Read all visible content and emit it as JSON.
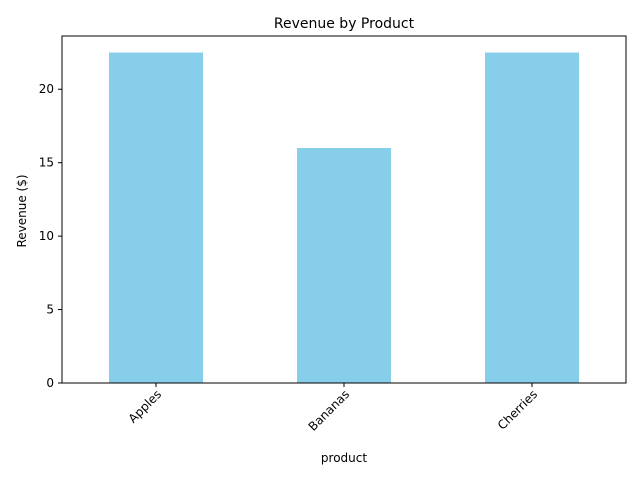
{
  "chart_data": {
    "type": "bar",
    "title": "Revenue by Product",
    "xlabel": "product",
    "ylabel": "Revenue ($)",
    "categories": [
      "Apples",
      "Bananas",
      "Cherries"
    ],
    "values": [
      22.5,
      16,
      22.5
    ],
    "ylim": [
      0,
      23.625
    ],
    "yticks": [
      0,
      5,
      10,
      15,
      20
    ],
    "grid": false,
    "legend": "none",
    "bar_color": "#87ceeb",
    "axis_color": "#000000"
  }
}
